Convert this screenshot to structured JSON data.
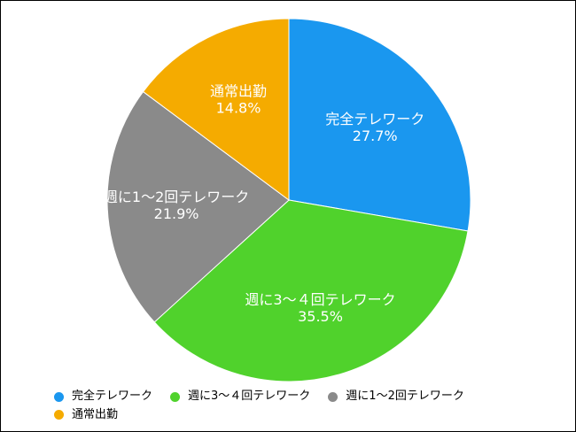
{
  "chart_data": {
    "type": "pie",
    "title": "",
    "legend_position": "bottom",
    "slices": [
      {
        "label": "完全テレワーク",
        "value": 27.7,
        "value_label": "27.7%",
        "color": "#1a97ef"
      },
      {
        "label": "週に3〜４回テレワーク",
        "value": 35.5,
        "value_label": "35.5%",
        "color": "#50d22c"
      },
      {
        "label": "週に1〜2回テレワーク",
        "value": 21.9,
        "value_label": "21.9%",
        "color": "#8a8a8a"
      },
      {
        "label": "通常出勤",
        "value": 14.8,
        "value_label": "14.8%",
        "color": "#f5ab00"
      }
    ]
  }
}
